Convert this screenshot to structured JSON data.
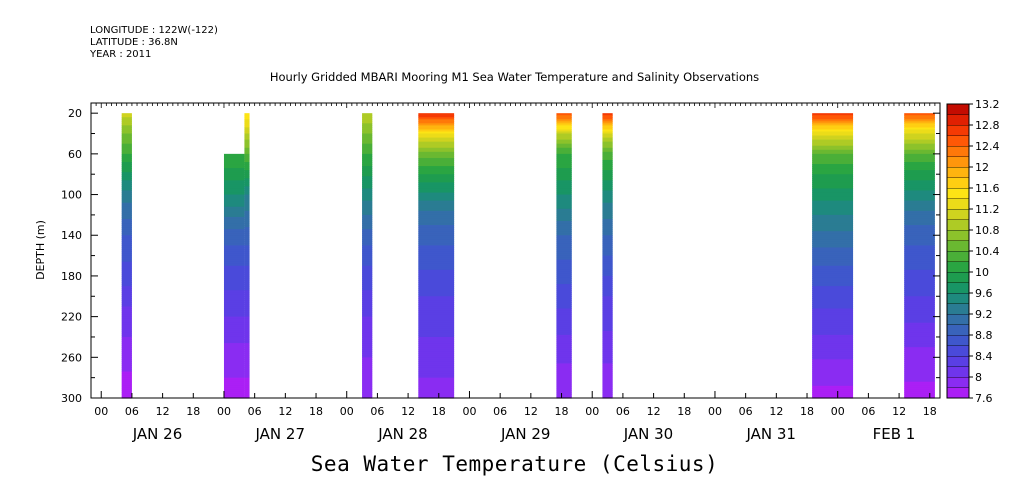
{
  "header": {
    "longitude": "LONGITUDE : 122W(-122)",
    "latitude": "LATITUDE : 36.8N",
    "year": "YEAR : 2011"
  },
  "chart_data": {
    "type": "heatmap",
    "title": "Hourly Gridded MBARI Mooring M1 Sea Water Temperature and Salinity Observations",
    "subtitle": "Sea Water Temperature (Celsius)",
    "ylabel": "DEPTH (m)",
    "y_ticks": [
      20,
      60,
      100,
      140,
      180,
      220,
      260,
      300
    ],
    "ylim": [
      300,
      10
    ],
    "y_inverted": true,
    "x_unit": "hours since JAN 25 00:00",
    "xlim": [
      -2,
      164
    ],
    "x_hour_ticks": [
      "00",
      "06",
      "12",
      "18",
      "00",
      "06",
      "12",
      "18",
      "00",
      "06",
      "12",
      "18",
      "00",
      "06",
      "12",
      "18",
      "00",
      "06",
      "12",
      "18",
      "00",
      "06",
      "12",
      "18",
      "00",
      "06",
      "12",
      "18"
    ],
    "x_day_labels": [
      "JAN 26",
      "JAN 27",
      "JAN 28",
      "JAN 29",
      "JAN 30",
      "JAN 31",
      "FEB 1"
    ],
    "colorbar": {
      "min": 7.6,
      "max": 13.2,
      "step": 0.2,
      "tick_labels": [
        "13.2",
        "12.8",
        "12.4",
        "12",
        "11.6",
        "11.2",
        "10.8",
        "10.4",
        "10",
        "9.6",
        "9.2",
        "8.8",
        "8.4",
        "8",
        "7.6"
      ],
      "colors": [
        "#ab1ff5",
        "#8a2cf2",
        "#6f35ec",
        "#5a3fe4",
        "#4a4ada",
        "#3f57cc",
        "#3963bb",
        "#336fa8",
        "#2a7c93",
        "#1e8a7e",
        "#189565",
        "#1e9c4f",
        "#2aa542",
        "#4aaf38",
        "#6ab831",
        "#8cc22b",
        "#aecb25",
        "#cfd31f",
        "#ecdc19",
        "#fde415",
        "#ffce12",
        "#ffb40f",
        "#ff960c",
        "#ff7809",
        "#ff5806",
        "#f53a04",
        "#e02002",
        "#c40c01",
        "#a00000"
      ],
      "color_thresholds": [
        7.6,
        7.8,
        8.0,
        8.2,
        8.4,
        8.6,
        8.8,
        9.0,
        9.2,
        9.4,
        9.6,
        9.8,
        10.0,
        10.2,
        10.4,
        10.6,
        10.8,
        11.0,
        11.2,
        11.4,
        11.6,
        11.8,
        12.0,
        12.2,
        12.4,
        12.6,
        12.8,
        13.0,
        13.2
      ]
    },
    "segments": [
      {
        "start_hour": 4,
        "end_hour": 6,
        "top_depth": 20,
        "profile": [
          [
            20,
            11.1
          ],
          [
            40,
            10.6
          ],
          [
            60,
            10.2
          ],
          [
            100,
            9.3
          ],
          [
            140,
            8.8
          ],
          [
            180,
            8.5
          ],
          [
            220,
            8.1
          ],
          [
            260,
            7.9
          ],
          [
            300,
            7.6
          ]
        ]
      },
      {
        "start_hour": 24,
        "end_hour": 28,
        "top_depth": 60,
        "profile": [
          [
            60,
            10.2
          ],
          [
            100,
            9.6
          ],
          [
            140,
            8.9
          ],
          [
            180,
            8.5
          ],
          [
            220,
            8.2
          ],
          [
            260,
            7.9
          ],
          [
            300,
            7.7
          ]
        ]
      },
      {
        "start_hour": 28,
        "end_hour": 29,
        "top_depth": 20,
        "profile": [
          [
            20,
            11.6
          ],
          [
            40,
            11.0
          ],
          [
            60,
            10.4
          ],
          [
            100,
            9.4
          ],
          [
            140,
            8.9
          ],
          [
            180,
            8.5
          ],
          [
            220,
            8.2
          ],
          [
            260,
            7.9
          ],
          [
            300,
            7.7
          ]
        ]
      },
      {
        "start_hour": 51,
        "end_hour": 53,
        "top_depth": 20,
        "profile": [
          [
            20,
            11.0
          ],
          [
            40,
            10.6
          ],
          [
            60,
            10.2
          ],
          [
            100,
            9.5
          ],
          [
            140,
            8.9
          ],
          [
            180,
            8.5
          ],
          [
            220,
            8.2
          ],
          [
            260,
            8.0
          ],
          [
            300,
            7.9
          ]
        ]
      },
      {
        "start_hour": 62,
        "end_hour": 69,
        "top_depth": 20,
        "profile": [
          [
            20,
            12.8
          ],
          [
            30,
            12.2
          ],
          [
            40,
            11.4
          ],
          [
            60,
            10.5
          ],
          [
            80,
            10.0
          ],
          [
            120,
            9.1
          ],
          [
            160,
            8.7
          ],
          [
            200,
            8.4
          ],
          [
            240,
            8.2
          ],
          [
            300,
            7.9
          ]
        ]
      },
      {
        "start_hour": 89,
        "end_hour": 92,
        "top_depth": 20,
        "profile": [
          [
            20,
            12.6
          ],
          [
            30,
            11.8
          ],
          [
            40,
            11.0
          ],
          [
            60,
            10.2
          ],
          [
            100,
            9.6
          ],
          [
            140,
            9.0
          ],
          [
            200,
            8.5
          ],
          [
            250,
            8.1
          ],
          [
            300,
            7.8
          ]
        ]
      },
      {
        "start_hour": 98,
        "end_hour": 100,
        "top_depth": 20,
        "profile": [
          [
            20,
            12.8
          ],
          [
            30,
            12.0
          ],
          [
            40,
            11.2
          ],
          [
            60,
            10.3
          ],
          [
            100,
            9.5
          ],
          [
            140,
            9.0
          ],
          [
            200,
            8.4
          ],
          [
            250,
            8.1
          ],
          [
            300,
            7.8
          ]
        ]
      },
      {
        "start_hour": 139,
        "end_hour": 147,
        "top_depth": 20,
        "profile": [
          [
            20,
            12.8
          ],
          [
            30,
            12.0
          ],
          [
            40,
            11.3
          ],
          [
            60,
            10.4
          ],
          [
            80,
            10.0
          ],
          [
            120,
            9.4
          ],
          [
            160,
            8.9
          ],
          [
            200,
            8.5
          ],
          [
            250,
            8.1
          ],
          [
            300,
            7.7
          ]
        ]
      },
      {
        "start_hour": 157,
        "end_hour": 163,
        "top_depth": 20,
        "profile": [
          [
            20,
            12.6
          ],
          [
            30,
            11.8
          ],
          [
            40,
            11.2
          ],
          [
            60,
            10.4
          ],
          [
            80,
            9.9
          ],
          [
            120,
            9.1
          ],
          [
            160,
            8.7
          ],
          [
            200,
            8.4
          ],
          [
            250,
            8.0
          ],
          [
            300,
            7.7
          ]
        ]
      }
    ]
  }
}
